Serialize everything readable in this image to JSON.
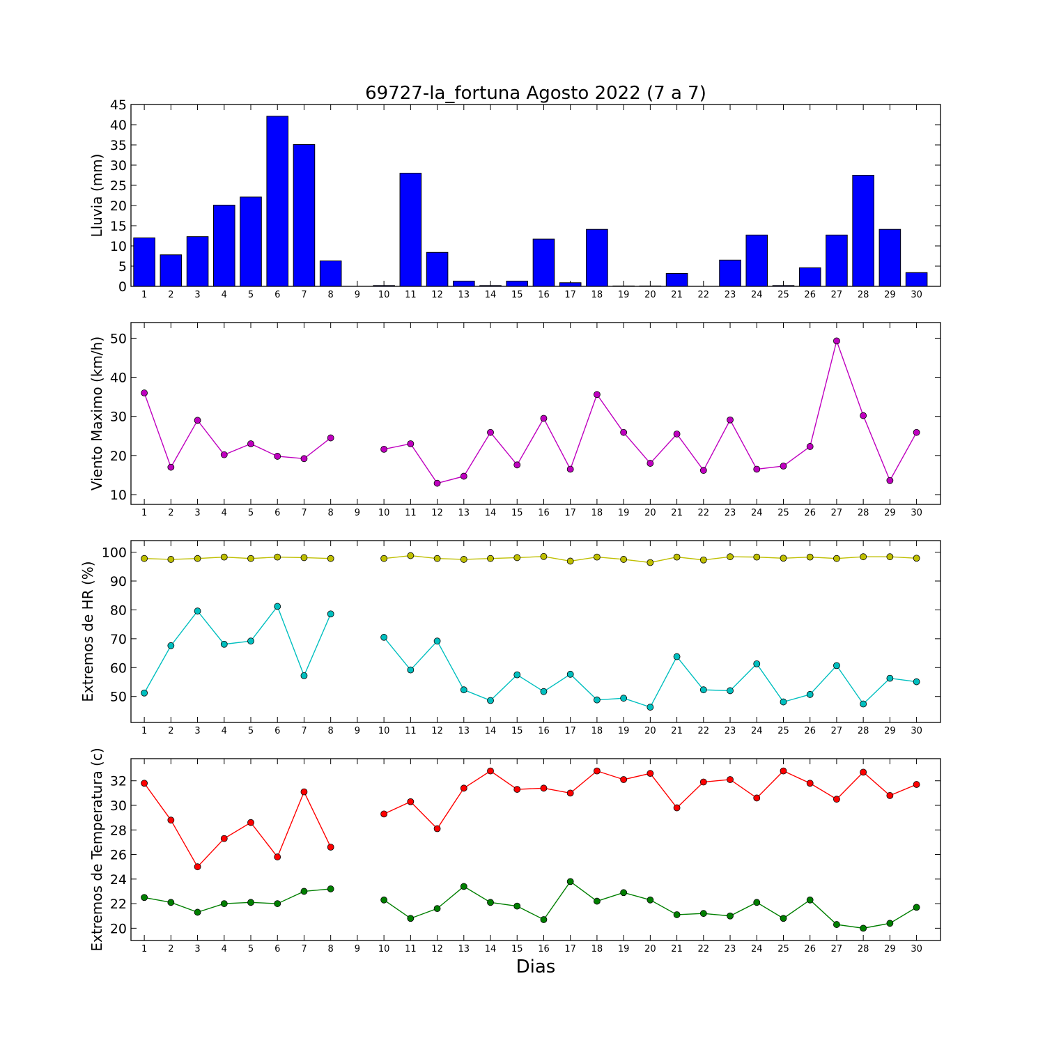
{
  "chart_data": {
    "title": "69727-la_fortuna Agosto 2022  (7 a 7)",
    "xlabel": "Dias",
    "x": [
      1,
      2,
      3,
      4,
      5,
      6,
      7,
      8,
      9,
      10,
      11,
      12,
      13,
      14,
      15,
      16,
      17,
      18,
      19,
      20,
      21,
      22,
      23,
      24,
      25,
      26,
      27,
      28,
      29,
      30
    ],
    "panels": [
      {
        "type": "bar",
        "ylabel": "Lluvia (mm)",
        "ylim": [
          0,
          45
        ],
        "yticks": [
          0,
          5,
          10,
          15,
          20,
          25,
          30,
          35,
          40,
          45
        ],
        "series": [
          {
            "color": "#0000ff",
            "values": [
              12.0,
              7.8,
              12.3,
              20.1,
              22.1,
              42.1,
              35.1,
              6.3,
              0.0,
              0.2,
              28.0,
              8.4,
              1.3,
              0.2,
              1.3,
              11.7,
              0.9,
              14.1,
              0.1,
              0.1,
              3.2,
              0.0,
              6.5,
              12.7,
              0.2,
              4.6,
              12.7,
              27.5,
              14.1,
              3.4
            ]
          }
        ]
      },
      {
        "type": "line",
        "ylabel": "Viento Maximo (km/h)",
        "ylim": [
          7.5,
          54
        ],
        "yticks": [
          10,
          20,
          30,
          40,
          50
        ],
        "series": [
          {
            "color": "#bf00bf",
            "values": [
              36.0,
              17.0,
              29.0,
              20.2,
              23.0,
              19.8,
              19.2,
              24.5,
              null,
              21.6,
              23.0,
              12.9,
              14.7,
              25.9,
              17.6,
              29.5,
              16.5,
              35.6,
              25.9,
              18.0,
              25.5,
              16.2,
              29.1,
              16.5,
              17.3,
              22.3,
              49.3,
              30.2,
              13.6,
              25.9
            ]
          }
        ]
      },
      {
        "type": "line",
        "ylabel": "Extremos de HR (%)",
        "ylim": [
          41,
          104
        ],
        "yticks": [
          50,
          60,
          70,
          80,
          90,
          100
        ],
        "series": [
          {
            "color": "#bfbf00",
            "values": [
              97.8,
              97.5,
              97.8,
              98.3,
              97.8,
              98.3,
              98.1,
              97.8,
              null,
              97.8,
              98.8,
              97.8,
              97.5,
              97.8,
              98.1,
              98.5,
              96.9,
              98.3,
              97.5,
              96.4,
              98.3,
              97.3,
              98.4,
              98.3,
              97.9,
              98.3,
              97.8,
              98.4,
              98.4,
              97.9
            ]
          },
          {
            "color": "#00bfbf",
            "values": [
              51.2,
              67.6,
              79.6,
              68.1,
              69.2,
              81.2,
              57.2,
              78.6,
              null,
              70.5,
              59.2,
              69.2,
              52.3,
              48.6,
              57.5,
              51.7,
              57.7,
              48.8,
              49.4,
              46.3,
              63.8,
              52.3,
              52.0,
              61.3,
              48.1,
              50.7,
              60.7,
              47.4,
              56.3,
              55.1
            ]
          }
        ]
      },
      {
        "type": "line",
        "ylabel": "Extremos de Temperatura (c)",
        "ylim": [
          19,
          33.8
        ],
        "yticks": [
          20,
          22,
          24,
          26,
          28,
          30,
          32
        ],
        "series": [
          {
            "color": "#ff0000",
            "values": [
              31.8,
              28.8,
              25.0,
              27.3,
              28.6,
              25.8,
              31.1,
              26.6,
              null,
              29.3,
              30.3,
              28.1,
              31.4,
              32.8,
              31.3,
              31.4,
              31.0,
              32.8,
              32.1,
              32.6,
              29.8,
              31.9,
              32.1,
              30.6,
              32.8,
              31.8,
              30.5,
              32.7,
              30.8,
              31.7
            ]
          },
          {
            "color": "#007f00",
            "values": [
              22.5,
              22.1,
              21.3,
              22.0,
              22.1,
              22.0,
              23.0,
              23.2,
              null,
              22.3,
              20.8,
              21.6,
              23.4,
              22.1,
              21.8,
              20.7,
              23.8,
              22.2,
              22.9,
              22.3,
              21.1,
              21.2,
              21.0,
              22.1,
              20.8,
              22.3,
              20.3,
              20.0,
              20.4,
              21.7
            ]
          }
        ]
      }
    ]
  }
}
